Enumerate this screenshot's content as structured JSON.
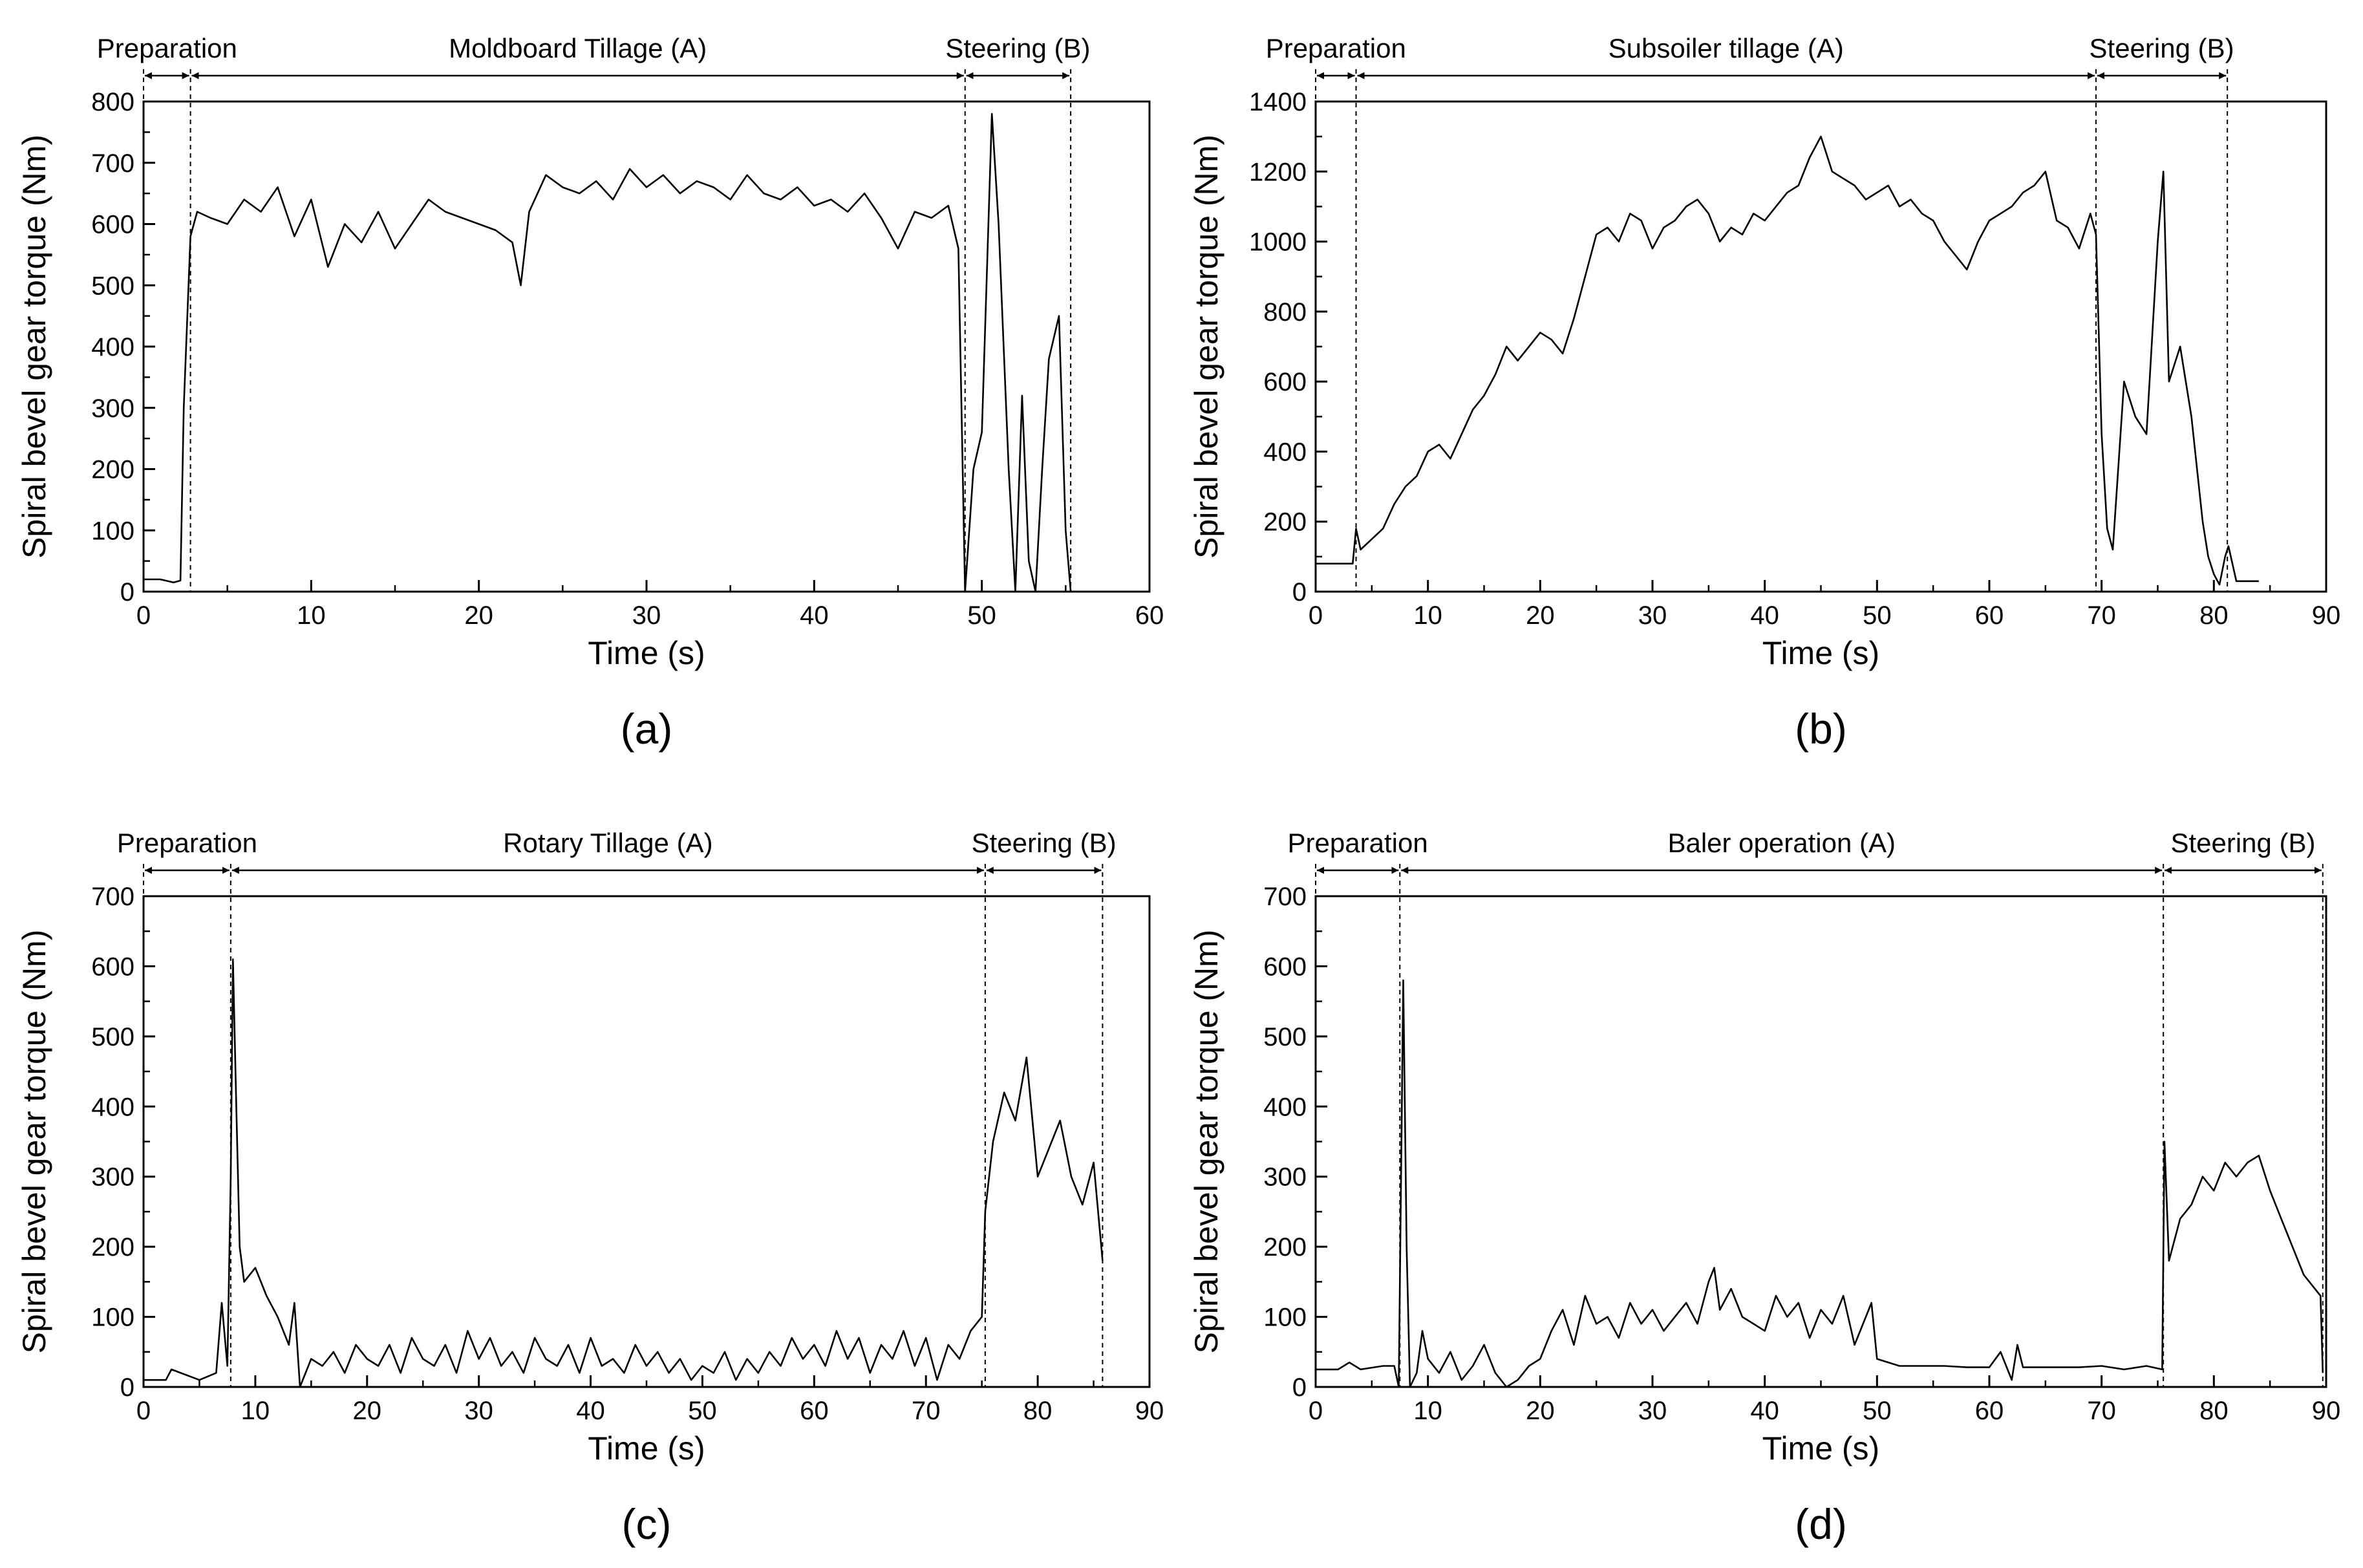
{
  "figure": {
    "background": "#ffffff",
    "line_color": "#000000"
  },
  "chart_data": [
    {
      "type": "line",
      "panel_label": "(a)",
      "xlabel": "Time (s)",
      "ylabel": "Spiral bevel gear torque (Nm)",
      "xlim": [
        0,
        60
      ],
      "ylim": [
        0,
        800
      ],
      "xticks": [
        0,
        10,
        20,
        30,
        40,
        50,
        60
      ],
      "yticks": [
        0,
        100,
        200,
        300,
        400,
        500,
        600,
        700,
        800
      ],
      "phases": [
        {
          "label": "Preparation",
          "start": 0,
          "end": 2.8
        },
        {
          "label": "Moldboard Tillage (A)",
          "start": 2.8,
          "end": 49
        },
        {
          "label": "Steering (B)",
          "start": 49,
          "end": 55.3
        }
      ],
      "phase_lines": [
        2.8,
        49,
        55.3
      ],
      "series": [
        {
          "x": [
            0,
            1,
            1.8,
            2.2,
            2.4,
            2.6,
            2.8,
            3.2,
            4,
            5,
            6,
            7,
            8,
            9,
            10,
            11,
            12,
            13,
            14,
            15,
            16,
            17,
            18,
            19,
            20,
            21,
            22,
            22.5,
            23,
            24,
            25,
            26,
            27,
            28,
            29,
            30,
            31,
            32,
            33,
            34,
            35,
            36,
            37,
            38,
            39,
            40,
            41,
            42,
            43,
            44,
            45,
            46,
            47,
            48,
            48.6,
            49,
            49.5,
            50,
            50.6,
            51,
            51.6,
            52,
            52.4,
            52.8,
            53.2,
            53.6,
            54,
            54.6,
            55,
            55.3
          ],
          "y": [
            20,
            20,
            15,
            18,
            300,
            440,
            580,
            620,
            610,
            600,
            640,
            620,
            660,
            580,
            640,
            530,
            600,
            570,
            620,
            560,
            600,
            640,
            620,
            610,
            600,
            590,
            570,
            500,
            620,
            680,
            660,
            650,
            670,
            640,
            690,
            660,
            680,
            650,
            670,
            660,
            640,
            680,
            650,
            640,
            660,
            630,
            640,
            620,
            650,
            610,
            560,
            620,
            610,
            630,
            560,
            0,
            200,
            260,
            780,
            600,
            200,
            0,
            320,
            50,
            0,
            200,
            380,
            450,
            100,
            0
          ]
        }
      ]
    },
    {
      "type": "line",
      "panel_label": "(b)",
      "xlabel": "Time (s)",
      "ylabel": "Spiral bevel gear torque (Nm)",
      "xlim": [
        0,
        90
      ],
      "ylim": [
        0,
        1400
      ],
      "xticks": [
        0,
        10,
        20,
        30,
        40,
        50,
        60,
        70,
        80,
        90
      ],
      "yticks": [
        0,
        200,
        400,
        600,
        800,
        1000,
        1200,
        1400
      ],
      "phases": [
        {
          "label": "Preparation",
          "start": 0,
          "end": 3.6
        },
        {
          "label": "Subsoiler tillage (A)",
          "start": 3.6,
          "end": 69.5
        },
        {
          "label": "Steering (B)",
          "start": 69.5,
          "end": 81.2
        }
      ],
      "phase_lines": [
        3.6,
        69.5,
        81.2
      ],
      "series": [
        {
          "x": [
            0,
            2,
            3.3,
            3.6,
            4,
            5,
            6,
            7,
            8,
            9,
            10,
            11,
            12,
            13,
            14,
            15,
            16,
            17,
            18,
            19,
            20,
            21,
            22,
            23,
            24,
            25,
            26,
            27,
            28,
            29,
            30,
            31,
            32,
            33,
            34,
            35,
            36,
            37,
            38,
            39,
            40,
            41,
            42,
            43,
            44,
            45,
            46,
            47,
            48,
            49,
            50,
            51,
            52,
            53,
            54,
            55,
            56,
            57,
            58,
            59,
            60,
            61,
            62,
            63,
            64,
            65,
            66,
            67,
            68,
            69,
            69.5,
            70,
            70.5,
            71,
            72,
            73,
            74,
            75,
            75.5,
            76,
            77,
            78,
            78.5,
            79,
            79.5,
            80,
            80.5,
            81,
            81.3,
            82,
            84
          ],
          "y": [
            80,
            80,
            80,
            180,
            120,
            150,
            180,
            250,
            300,
            330,
            400,
            420,
            380,
            450,
            520,
            560,
            620,
            700,
            660,
            700,
            740,
            720,
            680,
            780,
            900,
            1020,
            1040,
            1000,
            1080,
            1060,
            980,
            1040,
            1060,
            1100,
            1120,
            1080,
            1000,
            1040,
            1020,
            1080,
            1060,
            1100,
            1140,
            1160,
            1240,
            1300,
            1200,
            1180,
            1160,
            1120,
            1140,
            1160,
            1100,
            1120,
            1080,
            1060,
            1000,
            960,
            920,
            1000,
            1060,
            1080,
            1100,
            1140,
            1160,
            1200,
            1060,
            1040,
            980,
            1080,
            1020,
            450,
            180,
            120,
            600,
            500,
            450,
            1000,
            1200,
            600,
            700,
            500,
            350,
            200,
            100,
            50,
            20,
            100,
            130,
            30,
            30
          ]
        }
      ]
    },
    {
      "type": "line",
      "panel_label": "(c)",
      "xlabel": "Time (s)",
      "ylabel": "Spiral bevel gear torque (Nm)",
      "xlim": [
        0,
        90
      ],
      "ylim": [
        0,
        700
      ],
      "xticks": [
        0,
        10,
        20,
        30,
        40,
        50,
        60,
        70,
        80,
        90
      ],
      "yticks": [
        0,
        100,
        200,
        300,
        400,
        500,
        600,
        700
      ],
      "phases": [
        {
          "label": "Preparation",
          "start": 0,
          "end": 7.8
        },
        {
          "label": "Rotary Tillage (A)",
          "start": 7.8,
          "end": 75.3
        },
        {
          "label": "Steering (B)",
          "start": 75.3,
          "end": 85.8
        }
      ],
      "phase_lines": [
        7.8,
        75.3,
        85.8
      ],
      "series": [
        {
          "x": [
            0,
            2,
            2.5,
            5,
            6.5,
            7,
            7.5,
            7.8,
            8,
            8.3,
            8.6,
            9,
            10,
            11,
            12,
            13,
            13.5,
            14,
            15,
            16,
            17,
            18,
            19,
            20,
            21,
            22,
            23,
            24,
            25,
            26,
            27,
            28,
            29,
            30,
            31,
            32,
            33,
            34,
            35,
            36,
            37,
            38,
            39,
            40,
            41,
            42,
            43,
            44,
            45,
            46,
            47,
            48,
            49,
            50,
            51,
            52,
            53,
            54,
            55,
            56,
            57,
            58,
            59,
            60,
            61,
            62,
            63,
            64,
            65,
            66,
            67,
            68,
            69,
            70,
            71,
            72,
            73,
            74,
            75,
            75.3,
            76,
            77,
            78,
            79,
            80,
            81,
            82,
            83,
            84,
            85,
            85.8
          ],
          "y": [
            10,
            10,
            25,
            10,
            20,
            120,
            30,
            300,
            610,
            400,
            200,
            150,
            170,
            130,
            100,
            60,
            120,
            0,
            40,
            30,
            50,
            20,
            60,
            40,
            30,
            60,
            20,
            70,
            40,
            30,
            60,
            20,
            80,
            40,
            70,
            30,
            50,
            20,
            70,
            40,
            30,
            60,
            20,
            70,
            30,
            40,
            20,
            60,
            30,
            50,
            20,
            40,
            10,
            30,
            20,
            50,
            10,
            40,
            20,
            50,
            30,
            70,
            40,
            60,
            30,
            80,
            40,
            70,
            20,
            60,
            40,
            80,
            30,
            70,
            10,
            60,
            40,
            80,
            100,
            250,
            350,
            420,
            380,
            470,
            300,
            340,
            380,
            300,
            260,
            320,
            180
          ]
        }
      ]
    },
    {
      "type": "line",
      "panel_label": "(d)",
      "xlabel": "Time (s)",
      "ylabel": "Spiral bevel gear torque (Nm)",
      "xlim": [
        0,
        90
      ],
      "ylim": [
        0,
        700
      ],
      "xticks": [
        0,
        10,
        20,
        30,
        40,
        50,
        60,
        70,
        80,
        90
      ],
      "yticks": [
        0,
        100,
        200,
        300,
        400,
        500,
        600,
        700
      ],
      "phases": [
        {
          "label": "Preparation",
          "start": 0,
          "end": 7.5
        },
        {
          "label": "Baler operation (A)",
          "start": 7.5,
          "end": 75.5
        },
        {
          "label": "Steering (B)",
          "start": 75.5,
          "end": 89.7
        }
      ],
      "phase_lines": [
        7.5,
        75.5,
        89.7
      ],
      "series": [
        {
          "x": [
            0,
            2,
            3,
            4,
            6,
            7,
            7.4,
            7.8,
            8.1,
            8.4,
            9,
            9.5,
            10,
            11,
            12,
            13,
            14,
            15,
            16,
            17,
            18,
            19,
            20,
            21,
            22,
            23,
            24,
            25,
            26,
            27,
            28,
            29,
            30,
            31,
            32,
            33,
            34,
            35,
            35.5,
            36,
            37,
            38,
            39,
            40,
            41,
            42,
            43,
            44,
            45,
            46,
            47,
            48,
            49,
            49.5,
            50,
            51,
            52,
            54,
            56,
            58,
            60,
            61,
            62,
            62.5,
            63,
            64,
            66,
            68,
            70,
            72,
            74,
            75.4,
            75.6,
            76,
            77,
            78,
            79,
            80,
            81,
            82,
            83,
            84,
            85,
            86,
            87,
            88,
            89,
            89.5,
            89.7
          ],
          "y": [
            25,
            25,
            35,
            25,
            30,
            30,
            0,
            580,
            200,
            0,
            20,
            80,
            40,
            20,
            50,
            10,
            30,
            60,
            20,
            0,
            10,
            30,
            40,
            80,
            110,
            60,
            130,
            90,
            100,
            70,
            120,
            90,
            110,
            80,
            100,
            120,
            90,
            150,
            170,
            110,
            140,
            100,
            90,
            80,
            130,
            100,
            120,
            70,
            110,
            90,
            130,
            60,
            100,
            120,
            40,
            35,
            30,
            30,
            30,
            28,
            28,
            50,
            10,
            60,
            28,
            28,
            28,
            28,
            30,
            25,
            30,
            25,
            350,
            180,
            240,
            260,
            300,
            280,
            320,
            300,
            320,
            330,
            280,
            240,
            200,
            160,
            140,
            130,
            20
          ]
        }
      ]
    }
  ]
}
